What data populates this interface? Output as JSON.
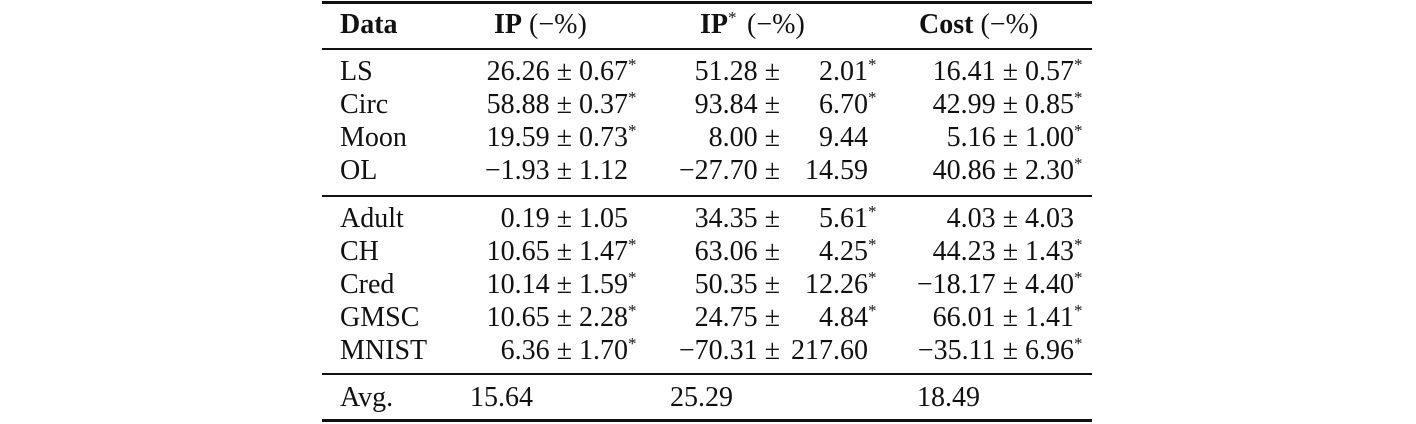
{
  "table": {
    "headers": {
      "data": "Data",
      "ip_bold": "IP",
      "ip_rest": " (−%)",
      "ipstar_bold": "IP",
      "ipstar_sup": "*",
      "ipstar_rest": " (−%)",
      "cost_bold": "Cost",
      "cost_rest": " (−%)"
    },
    "group1": [
      {
        "data": "LS",
        "ip": "26.26 ± 0.67",
        "ip_sig": "*",
        "ips_a": "51.28 ±",
        "ips_b": "2.01",
        "ips_sig": "*",
        "cost": "16.41 ± 0.57",
        "cost_sig": "*"
      },
      {
        "data": "Circ",
        "ip": "58.88 ± 0.37",
        "ip_sig": "*",
        "ips_a": "93.84 ±",
        "ips_b": "6.70",
        "ips_sig": "*",
        "cost": "42.99 ± 0.85",
        "cost_sig": "*"
      },
      {
        "data": "Moon",
        "ip": "19.59 ± 0.73",
        "ip_sig": "*",
        "ips_a": "8.00 ±",
        "ips_b": "9.44",
        "ips_sig": "",
        "cost": "5.16 ± 1.00",
        "cost_sig": "*"
      },
      {
        "data": "OL",
        "ip": "−1.93 ± 1.12",
        "ip_sig": "",
        "ips_a": "−27.70 ±",
        "ips_b": "14.59",
        "ips_sig": "",
        "cost": "40.86 ± 2.30",
        "cost_sig": "*"
      }
    ],
    "group2": [
      {
        "data": "Adult",
        "ip": "0.19 ± 1.05",
        "ip_sig": "",
        "ips_a": "34.35 ±",
        "ips_b": "5.61",
        "ips_sig": "*",
        "cost": "4.03 ± 4.03",
        "cost_sig": ""
      },
      {
        "data": "CH",
        "ip": "10.65 ± 1.47",
        "ip_sig": "*",
        "ips_a": "63.06 ±",
        "ips_b": "4.25",
        "ips_sig": "*",
        "cost": "44.23 ± 1.43",
        "cost_sig": "*"
      },
      {
        "data": "Cred",
        "ip": "10.14 ± 1.59",
        "ip_sig": "*",
        "ips_a": "50.35 ±",
        "ips_b": "12.26",
        "ips_sig": "*",
        "cost": "−18.17 ± 4.40",
        "cost_sig": "*"
      },
      {
        "data": "GMSC",
        "ip": "10.65 ± 2.28",
        "ip_sig": "*",
        "ips_a": "24.75 ±",
        "ips_b": "4.84",
        "ips_sig": "*",
        "cost": "66.01 ± 1.41",
        "cost_sig": "*"
      },
      {
        "data": "MNIST",
        "ip": "6.36 ± 1.70",
        "ip_sig": "*",
        "ips_a": "−70.31 ±",
        "ips_b": "217.60",
        "ips_sig": "",
        "cost": "−35.11 ± 6.96",
        "cost_sig": "*"
      }
    ],
    "avg": {
      "data": "Avg.",
      "ip": "15.64",
      "ips": "25.29",
      "cost": "18.49"
    }
  }
}
